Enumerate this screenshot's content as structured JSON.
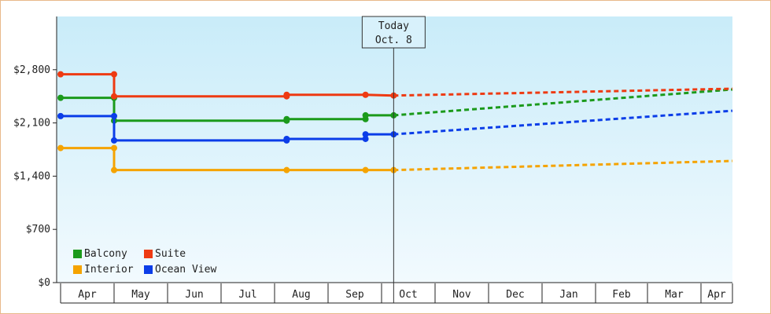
{
  "chart_data": {
    "type": "line",
    "title": "",
    "xlabel": "",
    "ylabel": "",
    "ylim": [
      0,
      2800
    ],
    "y_ticks": [
      0,
      700,
      1400,
      2100,
      2800
    ],
    "y_tick_labels": [
      "$0",
      "$700",
      "$1,400",
      "$2,100",
      "$2,800"
    ],
    "x_ticks": [
      "Apr",
      "May",
      "Jun",
      "Jul",
      "Aug",
      "Sep",
      "Oct",
      "Nov",
      "Dec",
      "Jan",
      "Feb",
      "Mar",
      "Apr"
    ],
    "today_label": "Today",
    "today_date": "Oct. 8",
    "legend_placement": "bottom-left",
    "series": [
      {
        "name": "Balcony",
        "color": "#1b9a1b",
        "historical": [
          [
            "Apr 1",
            2430
          ],
          [
            "May 1",
            2430
          ],
          [
            "May 1",
            2130
          ],
          [
            "Aug 8",
            2130
          ],
          [
            "Aug 8",
            2150
          ],
          [
            "Sep 22",
            2150
          ],
          [
            "Sep 22",
            2200
          ],
          [
            "Oct 8",
            2200
          ]
        ],
        "projected": [
          [
            "Oct 8",
            2200
          ],
          [
            "Apr 20",
            2540
          ]
        ]
      },
      {
        "name": "Suite",
        "color": "#ee3a12",
        "historical": [
          [
            "Apr 1",
            2740
          ],
          [
            "May 1",
            2740
          ],
          [
            "May 1",
            2450
          ],
          [
            "Aug 8",
            2450
          ],
          [
            "Aug 8",
            2470
          ],
          [
            "Sep 22",
            2470
          ],
          [
            "Oct 8",
            2460
          ]
        ],
        "projected": [
          [
            "Oct 8",
            2460
          ],
          [
            "Apr 20",
            2550
          ]
        ]
      },
      {
        "name": "Interior",
        "color": "#f5a300",
        "historical": [
          [
            "Apr 1",
            1770
          ],
          [
            "May 1",
            1770
          ],
          [
            "May 1",
            1480
          ],
          [
            "Aug 8",
            1480
          ],
          [
            "Sep 22",
            1480
          ],
          [
            "Oct 8",
            1480
          ]
        ],
        "projected": [
          [
            "Oct 8",
            1480
          ],
          [
            "Apr 20",
            1600
          ]
        ]
      },
      {
        "name": "Ocean View",
        "color": "#0b3de8",
        "historical": [
          [
            "Apr 1",
            2190
          ],
          [
            "May 1",
            2190
          ],
          [
            "May 1",
            1870
          ],
          [
            "Aug 8",
            1870
          ],
          [
            "Aug 8",
            1890
          ],
          [
            "Sep 22",
            1890
          ],
          [
            "Sep 22",
            1950
          ],
          [
            "Oct 8",
            1950
          ]
        ],
        "projected": [
          [
            "Oct 8",
            1950
          ],
          [
            "Apr 20",
            2260
          ]
        ]
      }
    ]
  }
}
